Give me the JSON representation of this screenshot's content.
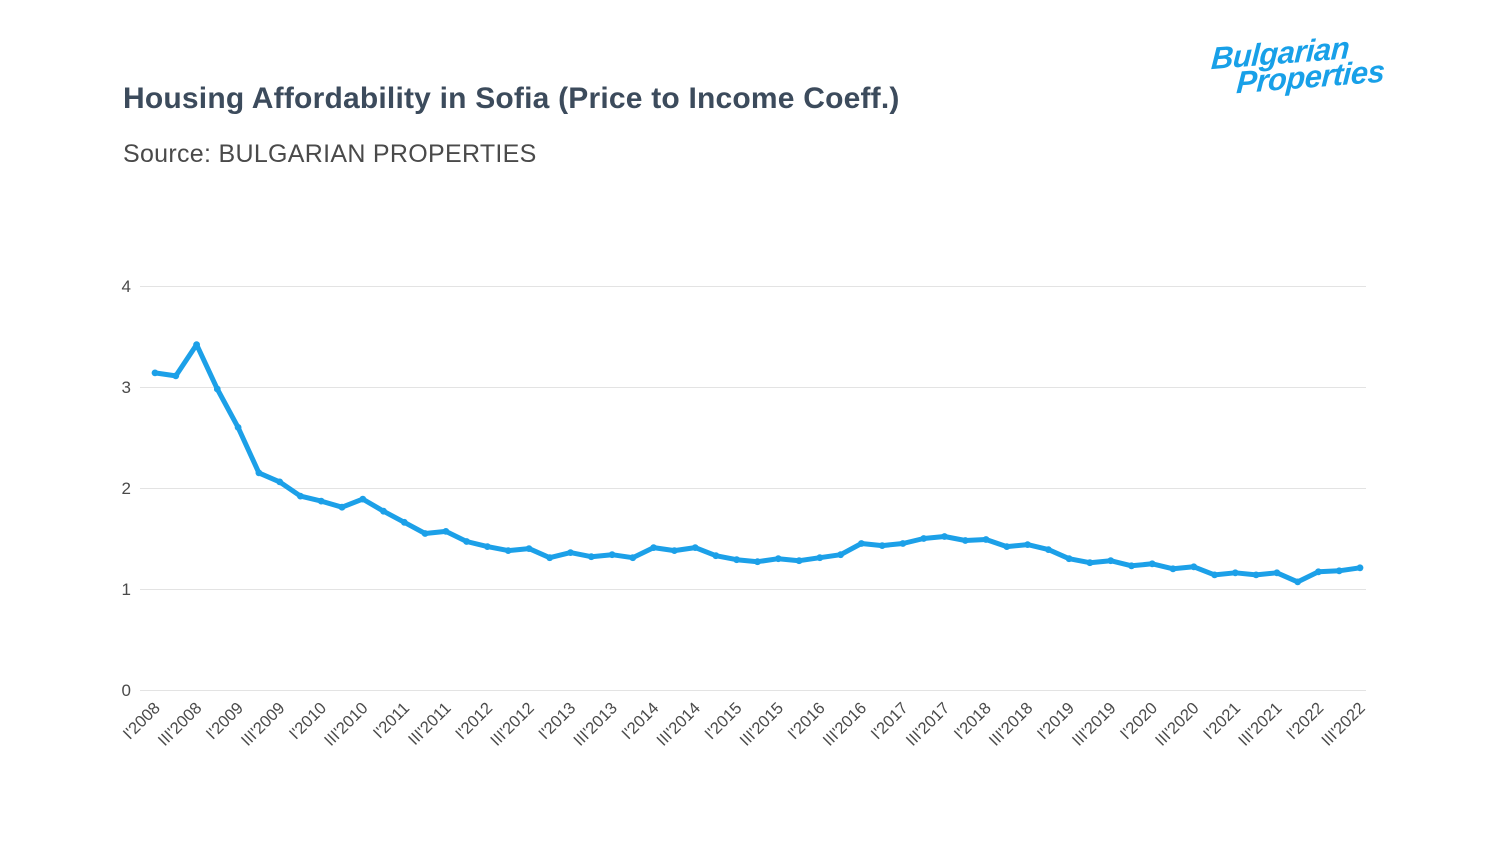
{
  "page": {
    "title": "Housing Affordability in Sofia (Price to Income Coeff.)",
    "source": "Source: BULGARIAN PROPERTIES",
    "logo": {
      "line1": "Bulgarian",
      "line2": "Properties",
      "color": "#18a0e8"
    }
  },
  "chart_data": {
    "type": "line",
    "title": "Housing Affordability in Sofia (Price to Income Coeff.)",
    "subtitle": "Source: BULGARIAN PROPERTIES",
    "categories": [
      "I'2008",
      "II'2008",
      "III'2008",
      "IV'2008",
      "I'2009",
      "II'2009",
      "III'2009",
      "IV'2009",
      "I'2010",
      "II'2010",
      "III'2010",
      "IV'2010",
      "I'2011",
      "II'2011",
      "III'2011",
      "IV'2011",
      "I'2012",
      "II'2012",
      "III'2012",
      "IV'2012",
      "I'2013",
      "II'2013",
      "III'2013",
      "IV'2013",
      "I'2014",
      "II'2014",
      "III'2014",
      "IV'2014",
      "I'2015",
      "II'2015",
      "III'2015",
      "IV'2015",
      "I'2016",
      "II'2016",
      "III'2016",
      "IV'2016",
      "I'2017",
      "II'2017",
      "III'2017",
      "IV'2017",
      "I'2018",
      "II'2018",
      "III'2018",
      "IV'2018",
      "I'2019",
      "II'2019",
      "III'2019",
      "IV'2019",
      "I'2020",
      "II'2020",
      "III'2020",
      "IV'2020",
      "I'2021",
      "II'2021",
      "III'2021",
      "IV'2021",
      "I'2022",
      "II'2022",
      "III'2022"
    ],
    "values": [
      3.14,
      3.11,
      3.42,
      2.98,
      2.6,
      2.15,
      2.06,
      1.92,
      1.87,
      1.81,
      1.89,
      1.77,
      1.66,
      1.55,
      1.57,
      1.47,
      1.42,
      1.38,
      1.4,
      1.31,
      1.36,
      1.32,
      1.34,
      1.31,
      1.41,
      1.38,
      1.41,
      1.33,
      1.29,
      1.27,
      1.3,
      1.28,
      1.31,
      1.34,
      1.45,
      1.43,
      1.45,
      1.5,
      1.52,
      1.48,
      1.49,
      1.42,
      1.44,
      1.39,
      1.3,
      1.26,
      1.28,
      1.23,
      1.25,
      1.2,
      1.22,
      1.14,
      1.16,
      1.14,
      1.16,
      1.07,
      1.17,
      1.18,
      1.21
    ],
    "visible_x_tick_labels": [
      "I'2008",
      "III'2008",
      "I'2009",
      "III'2009",
      "I'2010",
      "III'2010",
      "I'2011",
      "III'2011",
      "I'2012",
      "III'2012",
      "I'2013",
      "III'2013",
      "I'2014",
      "III'2014",
      "I'2015",
      "III'2015",
      "I'2016",
      "III'2016",
      "I'2017",
      "III'2017",
      "I'2018",
      "III'2018",
      "I'2019",
      "III'2019",
      "I'2020",
      "III'2020",
      "I'2021",
      "III'2021",
      "I'2022",
      "III'2022"
    ],
    "x_tick_every": 2,
    "yticks": [
      0,
      1,
      2,
      3,
      4
    ],
    "ylim": [
      0,
      4
    ],
    "grid": "horizontal",
    "legend": "none",
    "line_color": "#1ca0e8",
    "grid_color": "#e3e3e3",
    "axis_label_color": "#4a4a4a"
  }
}
